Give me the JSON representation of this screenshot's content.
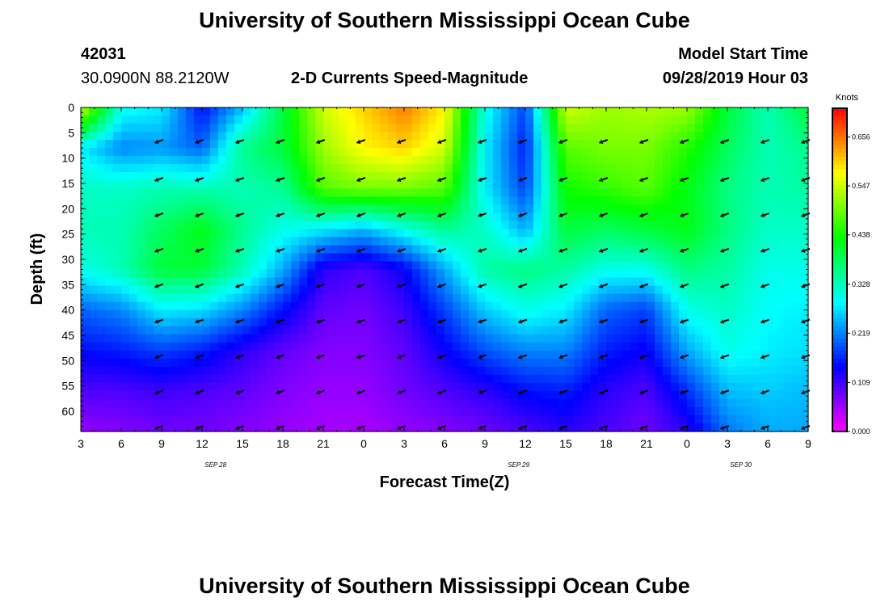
{
  "header": {
    "title": "University of Southern Mississippi Ocean Cube",
    "station_id": "42031",
    "station_location": "30.0900N 88.2120W",
    "subtitle": "2-D Currents Speed-Magnitude",
    "model_label": "Model Start Time",
    "model_time": "09/28/2019 Hour 03"
  },
  "footer": {
    "title": "University of Southern Mississippi Ocean Cube"
  },
  "chart_data": {
    "type": "heatmap",
    "title": "2-D Currents Speed-Magnitude",
    "xlabel": "Forecast Time(Z)",
    "ylabel": "Depth (ft)",
    "x_tick_labels": [
      "3",
      "6",
      "9",
      "12",
      "15",
      "18",
      "21",
      "0",
      "3",
      "6",
      "9",
      "12",
      "15",
      "18",
      "21",
      "0",
      "3",
      "6",
      "9"
    ],
    "x_range_hours": [
      0,
      54
    ],
    "date_labels": [
      {
        "label": "SEP 28",
        "hour": 10
      },
      {
        "label": "SEP 29",
        "hour": 32.5
      },
      {
        "label": "SEP 30",
        "hour": 49
      }
    ],
    "y_ticks": [
      0,
      5,
      10,
      15,
      20,
      25,
      30,
      35,
      40,
      45,
      50,
      55,
      60
    ],
    "y_range_ft": [
      0,
      64
    ],
    "colorbar": {
      "unit": "Knots",
      "range": [
        0,
        0.72
      ],
      "ticks": [
        "0.656",
        "0.547",
        "0.438",
        "0.328",
        "0.219",
        "0.109",
        "0.000"
      ],
      "tick_values": [
        0.656,
        0.547,
        0.438,
        0.328,
        0.219,
        0.109,
        0.0
      ]
    },
    "speed_field": {
      "description": "Current speed (knots) sampled on a grid; columns = forecast hour (0..54 step 3), rows = depth (ft)",
      "hours": [
        0,
        3,
        6,
        9,
        12,
        15,
        18,
        21,
        24,
        27,
        30,
        33,
        36,
        39,
        42,
        45,
        48,
        51,
        54
      ],
      "depths": [
        0,
        8,
        16,
        24,
        32,
        40,
        48,
        56,
        64
      ],
      "values": [
        [
          0.55,
          0.3,
          0.28,
          0.15,
          0.25,
          0.4,
          0.55,
          0.6,
          0.65,
          0.58,
          0.3,
          0.18,
          0.55,
          0.52,
          0.53,
          0.52,
          0.4,
          0.33,
          0.4
        ],
        [
          0.28,
          0.22,
          0.23,
          0.2,
          0.35,
          0.4,
          0.52,
          0.58,
          0.6,
          0.55,
          0.28,
          0.16,
          0.48,
          0.5,
          0.5,
          0.45,
          0.38,
          0.33,
          0.35
        ],
        [
          0.32,
          0.32,
          0.33,
          0.33,
          0.33,
          0.35,
          0.48,
          0.5,
          0.5,
          0.48,
          0.28,
          0.18,
          0.44,
          0.46,
          0.48,
          0.42,
          0.36,
          0.33,
          0.34
        ],
        [
          0.33,
          0.33,
          0.38,
          0.42,
          0.35,
          0.3,
          0.28,
          0.25,
          0.3,
          0.35,
          0.32,
          0.24,
          0.4,
          0.38,
          0.4,
          0.42,
          0.36,
          0.32,
          0.32
        ],
        [
          0.3,
          0.33,
          0.4,
          0.4,
          0.33,
          0.24,
          0.12,
          0.1,
          0.14,
          0.24,
          0.34,
          0.36,
          0.34,
          0.3,
          0.3,
          0.36,
          0.34,
          0.3,
          0.3
        ],
        [
          0.2,
          0.22,
          0.28,
          0.27,
          0.22,
          0.15,
          0.09,
          0.08,
          0.11,
          0.18,
          0.26,
          0.3,
          0.28,
          0.2,
          0.18,
          0.3,
          0.32,
          0.29,
          0.28
        ],
        [
          0.15,
          0.16,
          0.18,
          0.16,
          0.12,
          0.09,
          0.07,
          0.07,
          0.09,
          0.14,
          0.19,
          0.22,
          0.22,
          0.16,
          0.14,
          0.24,
          0.3,
          0.28,
          0.27
        ],
        [
          0.1,
          0.1,
          0.11,
          0.1,
          0.09,
          0.07,
          0.06,
          0.06,
          0.08,
          0.1,
          0.12,
          0.15,
          0.16,
          0.12,
          0.1,
          0.17,
          0.25,
          0.26,
          0.25
        ],
        [
          0.06,
          0.07,
          0.08,
          0.08,
          0.07,
          0.06,
          0.05,
          0.05,
          0.06,
          0.07,
          0.08,
          0.1,
          0.12,
          0.1,
          0.08,
          0.12,
          0.21,
          0.24,
          0.24
        ]
      ]
    },
    "vectors": {
      "description": "Current direction arrows (degrees, math convention) at columns (hours) and depths",
      "hours": [
        6,
        9,
        12,
        15,
        18,
        21,
        24,
        27,
        30,
        33,
        36,
        39,
        42,
        45,
        48,
        51,
        54
      ],
      "depths": [
        6.5,
        14,
        21,
        28,
        35,
        42,
        49,
        56,
        63
      ],
      "direction_deg": 200
    }
  }
}
